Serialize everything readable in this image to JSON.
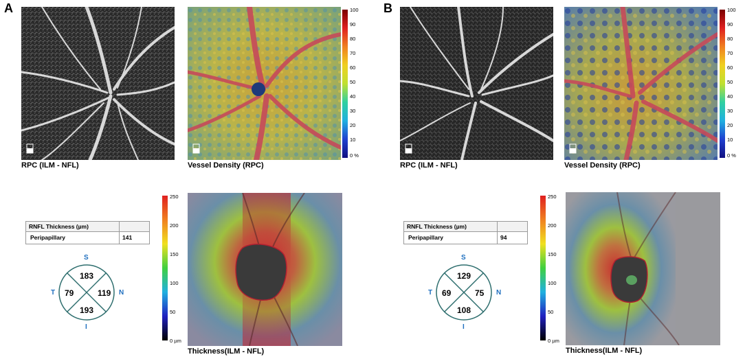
{
  "panels": [
    {
      "letter": "A",
      "rpc_caption": "RPC (ILM - NFL)",
      "vd_caption": "Vessel Density (RPC)",
      "vd_scale_ticks": [
        "100",
        "90",
        "80",
        "70",
        "60",
        "50",
        "40",
        "30",
        "20",
        "10",
        "0 %"
      ],
      "table_header": "RNFL Thickness (µm)",
      "table_row_label": "Peripapillary",
      "table_row_value": "141",
      "circle": {
        "S_label": "S",
        "N_label": "N",
        "I_label": "I",
        "T_label": "T",
        "superior": "183",
        "nasal": "119",
        "inferior": "193",
        "temporal": "79"
      },
      "thickness_scale_ticks": [
        "250",
        "200",
        "150",
        "100",
        "50",
        "0 µm"
      ],
      "thickness_caption": "Thickness(ILM - NFL)"
    },
    {
      "letter": "B",
      "rpc_caption": "RPC (ILM - NFL)",
      "vd_caption": "Vessel Density (RPC)",
      "vd_scale_ticks": [
        "100",
        "90",
        "80",
        "70",
        "60",
        "50",
        "40",
        "30",
        "20",
        "10",
        "0 %"
      ],
      "table_header": "RNFL Thickness (µm)",
      "table_row_label": "Peripapillary",
      "table_row_value": "94",
      "circle": {
        "S_label": "S",
        "N_label": "N",
        "I_label": "I",
        "T_label": "T",
        "superior": "129",
        "nasal": "75",
        "inferior": "108",
        "temporal": "69"
      },
      "thickness_scale_ticks": [
        "250",
        "200",
        "150",
        "100",
        "50",
        "0 µm"
      ],
      "thickness_caption": "Thickness(ILM - NFL)"
    }
  ]
}
